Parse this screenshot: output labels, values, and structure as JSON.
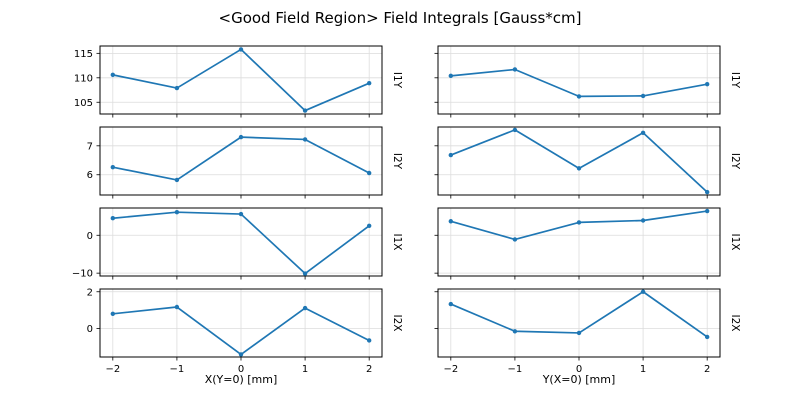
{
  "chart_data": {
    "type": "line",
    "title": "<Good Field Region> Field Integrals [Gauss*cm]",
    "x": [
      -2,
      -1,
      0,
      1,
      2
    ],
    "xlim": [
      -2.2,
      2.2
    ],
    "x_tick_labels": [
      "−2",
      "−1",
      "0",
      "1",
      "2"
    ],
    "col_xlabels": [
      "X(Y=0) [mm]",
      "Y(X=0) [mm]"
    ],
    "row_labels": [
      "I1Y",
      "I2Y",
      "I1X",
      "I2X"
    ],
    "line_color": "#1f77b4",
    "grid": true,
    "legend": "none",
    "rows": [
      {
        "label": "I1Y",
        "ylim": [
          102.6,
          116.5
        ],
        "yticks": [
          {
            "v": 105,
            "label": "105"
          },
          {
            "v": 110,
            "label": "110"
          },
          {
            "v": 115,
            "label": "115"
          }
        ],
        "series": [
          {
            "name": "I1Y vs X",
            "values": [
              110.6,
              107.9,
              115.8,
              103.3,
              108.9
            ]
          },
          {
            "name": "I1Y vs Y",
            "values": [
              110.4,
              111.7,
              106.2,
              106.3,
              108.7
            ]
          }
        ]
      },
      {
        "label": "I2Y",
        "ylim": [
          5.3,
          7.65
        ],
        "yticks": [
          {
            "v": 6,
            "label": "6"
          },
          {
            "v": 7,
            "label": "7"
          }
        ],
        "series": [
          {
            "name": "I2Y vs X",
            "values": [
              6.26,
              5.82,
              7.3,
              7.22,
              6.06
            ]
          },
          {
            "name": "I2Y vs Y",
            "values": [
              6.68,
              7.55,
              6.22,
              7.45,
              5.4
            ]
          }
        ]
      },
      {
        "label": "I1X",
        "ylim": [
          -10.75,
          7.2
        ],
        "yticks": [
          {
            "v": -10,
            "label": "−10"
          },
          {
            "v": 0,
            "label": "0"
          }
        ],
        "series": [
          {
            "name": "I1X vs X",
            "values": [
              4.5,
              6.1,
              5.6,
              -10.1,
              2.5
            ]
          },
          {
            "name": "I1X vs Y",
            "values": [
              3.7,
              -1.1,
              3.4,
              3.9,
              6.4
            ]
          }
        ]
      },
      {
        "label": "I2X",
        "ylim": [
          -1.55,
          2.15
        ],
        "yticks": [
          {
            "v": 0,
            "label": "0"
          },
          {
            "v": 2,
            "label": "2"
          }
        ],
        "series": [
          {
            "name": "I2X vs X",
            "values": [
              0.8,
              1.17,
              -1.41,
              1.11,
              -0.65
            ]
          },
          {
            "name": "I2X vs Y",
            "values": [
              1.33,
              -0.15,
              -0.24,
              2.0,
              -0.46
            ]
          }
        ]
      }
    ]
  }
}
